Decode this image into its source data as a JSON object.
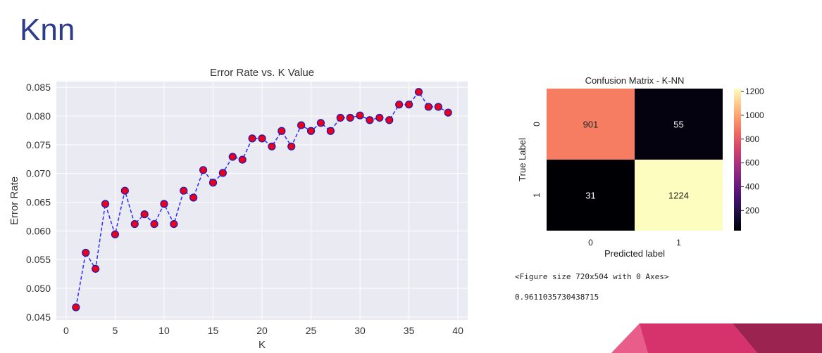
{
  "slide": {
    "title": "Knn"
  },
  "output": {
    "figure_size_text": "<Figure size 720x504 with 0 Axes>",
    "accuracy_text": "0.9611035730438715"
  },
  "colors": {
    "title": "#2e3a8c",
    "line": "#2b2bff",
    "marker_face": "#e8001c",
    "marker_edge": "#1a1ab8",
    "plot_bg": "#eaeaf2",
    "accent_pink": "#d6336c",
    "accent_light": "#e85d8a",
    "accent_dark": "#9b2350"
  },
  "chart_data": [
    {
      "type": "line",
      "title": "Error Rate vs. K Value",
      "xlabel": "K",
      "ylabel": "Error Rate",
      "xlim": [
        -1,
        41
      ],
      "ylim": [
        0.0445,
        0.086
      ],
      "xticks": [
        0,
        5,
        10,
        15,
        20,
        25,
        30,
        35,
        40
      ],
      "yticks": [
        0.045,
        0.05,
        0.055,
        0.06,
        0.065,
        0.07,
        0.075,
        0.08,
        0.085
      ],
      "ytick_labels": [
        "0.045",
        "0.050",
        "0.055",
        "0.060",
        "0.065",
        "0.070",
        "0.075",
        "0.080",
        "0.085"
      ],
      "grid": true,
      "series": [
        {
          "x": [
            1,
            2,
            3,
            4,
            5,
            6,
            7,
            8,
            9,
            10,
            11,
            12,
            13,
            14,
            15,
            16,
            17,
            18,
            19,
            20,
            21,
            22,
            23,
            24,
            25,
            26,
            27,
            28,
            29,
            30,
            31,
            32,
            33,
            34,
            35,
            36,
            37,
            38,
            39
          ],
          "values": [
            0.0467,
            0.0562,
            0.0534,
            0.0647,
            0.0594,
            0.067,
            0.0612,
            0.0629,
            0.0612,
            0.0647,
            0.0612,
            0.067,
            0.0658,
            0.0706,
            0.0684,
            0.0701,
            0.0729,
            0.0724,
            0.0761,
            0.0761,
            0.0747,
            0.0774,
            0.0747,
            0.0784,
            0.0774,
            0.0788,
            0.0774,
            0.0797,
            0.0797,
            0.0801,
            0.0793,
            0.0797,
            0.0793,
            0.082,
            0.082,
            0.0842,
            0.0816,
            0.0816,
            0.0806
          ],
          "line_style": "dashed"
        }
      ]
    },
    {
      "type": "heatmap",
      "title": "Confusion Matrix - K-NN",
      "xlabel": "Predicted label",
      "ylabel": "True Label",
      "x_categories": [
        "0",
        "1"
      ],
      "y_categories": [
        "0",
        "1"
      ],
      "values": [
        [
          901,
          55
        ],
        [
          31,
          1224
        ]
      ],
      "colorbar": {
        "min": 31,
        "max": 1224,
        "ticks": [
          200,
          400,
          600,
          800,
          1000,
          1200
        ]
      },
      "colormap": "magma"
    }
  ]
}
